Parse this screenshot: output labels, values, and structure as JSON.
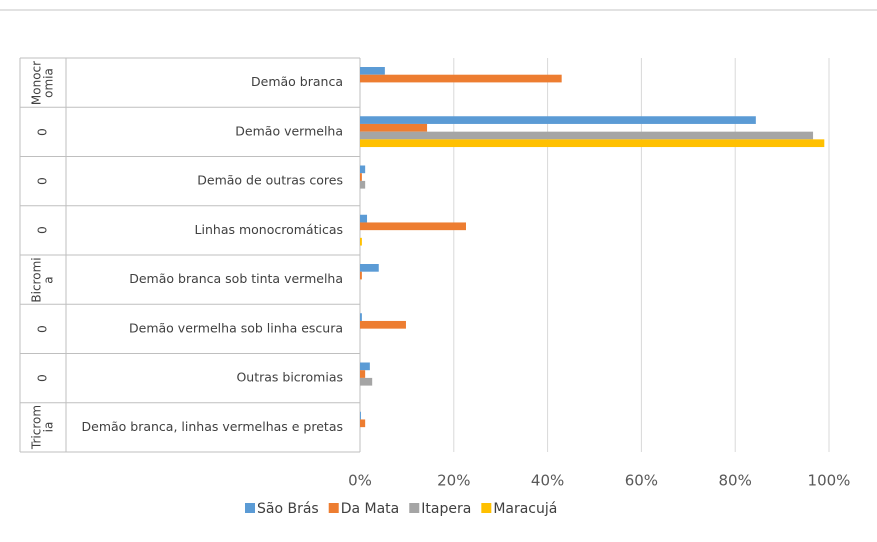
{
  "chart_data": {
    "type": "bar",
    "orientation": "horizontal",
    "group_labels": [
      "Monocromia",
      "0",
      "0",
      "0",
      "Bicromia",
      "0",
      "0",
      "Tricromia"
    ],
    "categories": [
      "Demão branca",
      "Demão vermelha",
      "Demão de outras cores",
      "Linhas monocromáticas",
      "Demão branca sob tinta vermelha",
      "Demão vermelha sob linha escura",
      "Outras bicromias",
      "Demão branca, linhas vermelhas e pretas"
    ],
    "series": [
      {
        "name": "São Brás",
        "color": "#5b9bd5",
        "values": [
          5.3,
          84.4,
          1.1,
          1.5,
          4,
          0.4,
          2.1,
          0.2
        ]
      },
      {
        "name": "Da Mata",
        "color": "#ed7d31",
        "values": [
          43,
          14.3,
          0.4,
          22.6,
          0.4,
          9.8,
          1.1,
          1.1
        ]
      },
      {
        "name": "Itapera",
        "color": "#a5a5a5",
        "values": [
          0,
          96.6,
          1.1,
          0,
          0,
          0,
          2.6,
          0
        ]
      },
      {
        "name": "Maracujá",
        "color": "#ffc000",
        "values": [
          0,
          99,
          0,
          0.4,
          0,
          0,
          0,
          0
        ]
      }
    ],
    "xlim": [
      0,
      100
    ],
    "xticks": [
      {
        "value": 0,
        "label": "0%"
      },
      {
        "value": 20,
        "label": "20%"
      },
      {
        "value": 40,
        "label": "40%"
      },
      {
        "value": 60,
        "label": "60%"
      },
      {
        "value": 80,
        "label": "80%"
      },
      {
        "value": 100,
        "label": "100%"
      }
    ],
    "grid": true,
    "legend": "bottom"
  }
}
